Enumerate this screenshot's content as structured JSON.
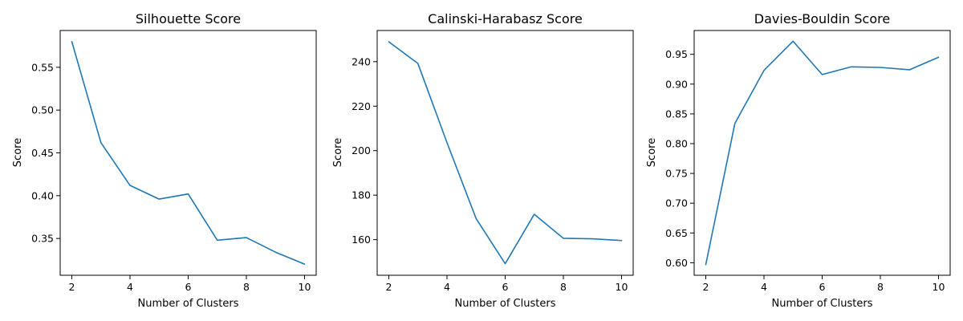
{
  "colors": {
    "series": "#1f77b4",
    "axis": "#000000",
    "background": "#ffffff"
  },
  "chart_data": [
    {
      "type": "line",
      "title": "Silhouette Score",
      "xlabel": "Number of Clusters",
      "ylabel": "Score",
      "xlim": [
        1.6,
        10.4
      ],
      "ylim": [
        0.307,
        0.593
      ],
      "xticks": [
        2,
        4,
        6,
        8,
        10
      ],
      "yticks": [
        0.35,
        0.4,
        0.45,
        0.5,
        0.55
      ],
      "ytick_labels": [
        "0.35",
        "0.40",
        "0.45",
        "0.50",
        "0.55"
      ],
      "grid": false,
      "x": [
        2,
        3,
        4,
        5,
        6,
        7,
        8,
        9,
        10
      ],
      "series": [
        {
          "values": [
            0.58,
            0.462,
            0.412,
            0.396,
            0.402,
            0.348,
            0.351,
            0.334,
            0.32
          ]
        }
      ]
    },
    {
      "type": "line",
      "title": "Calinski-Harabasz Score",
      "xlabel": "Number of Clusters",
      "ylabel": "Score",
      "xlim": [
        1.6,
        10.4
      ],
      "ylim": [
        144.0,
        254.0
      ],
      "xticks": [
        2,
        4,
        6,
        8,
        10
      ],
      "yticks": [
        160,
        180,
        200,
        220,
        240
      ],
      "ytick_labels": [
        "160",
        "180",
        "200",
        "220",
        "240"
      ],
      "grid": false,
      "x": [
        2,
        3,
        4,
        5,
        6,
        7,
        8,
        9,
        10
      ],
      "series": [
        {
          "values": [
            248.9,
            239.2,
            203.6,
            169.5,
            149.2,
            171.4,
            160.6,
            160.4,
            159.6
          ]
        }
      ]
    },
    {
      "type": "line",
      "title": "Davies-Bouldin Score",
      "xlabel": "Number of Clusters",
      "ylabel": "Score",
      "xlim": [
        1.6,
        10.4
      ],
      "ylim": [
        0.579,
        0.99
      ],
      "xticks": [
        2,
        4,
        6,
        8,
        10
      ],
      "yticks": [
        0.6,
        0.65,
        0.7,
        0.75,
        0.8,
        0.85,
        0.9,
        0.95
      ],
      "ytick_labels": [
        "0.60",
        "0.65",
        "0.70",
        "0.75",
        "0.80",
        "0.85",
        "0.90",
        "0.95"
      ],
      "grid": false,
      "x": [
        2,
        3,
        4,
        5,
        6,
        7,
        8,
        9,
        10
      ],
      "series": [
        {
          "values": [
            0.597,
            0.834,
            0.923,
            0.972,
            0.916,
            0.929,
            0.928,
            0.924,
            0.945
          ]
        }
      ]
    }
  ]
}
